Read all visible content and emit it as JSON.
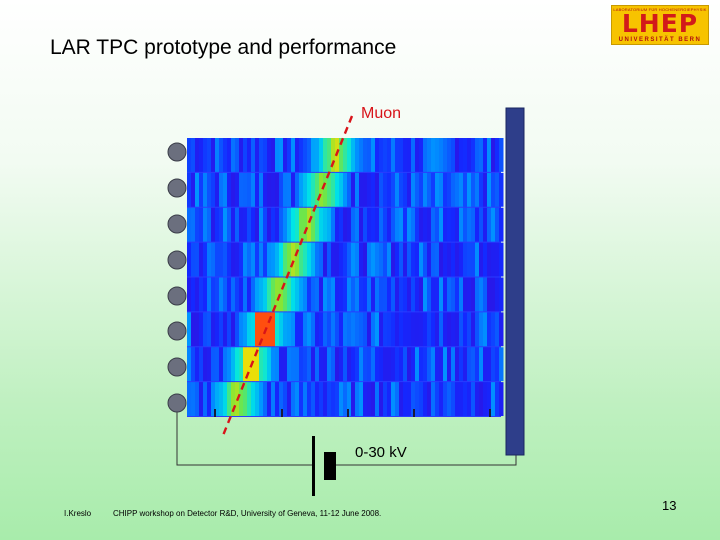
{
  "slide": {
    "title": "LAR TPC prototype and performance",
    "logo_top": "LABORATORIUM FÜR HOCHENERGIEPHYSIK",
    "logo_main": "LHEP",
    "logo_bottom": "UNIVERSITÄT BERN",
    "track_label": "Muon",
    "voltage_label": "0-30 kV",
    "footer_author": "I.Kreslo",
    "footer_text": "CHIPP workshop on Detector R&D, University of Geneva, 11-12 June 2008.",
    "page_number": "13"
  },
  "colors": {
    "track": "#d8141a",
    "electrode": "#2e3e8a",
    "readout_pad": "#6b6f7e",
    "logo_background": "#f7c300",
    "logo_text": "#d21a1a"
  }
}
